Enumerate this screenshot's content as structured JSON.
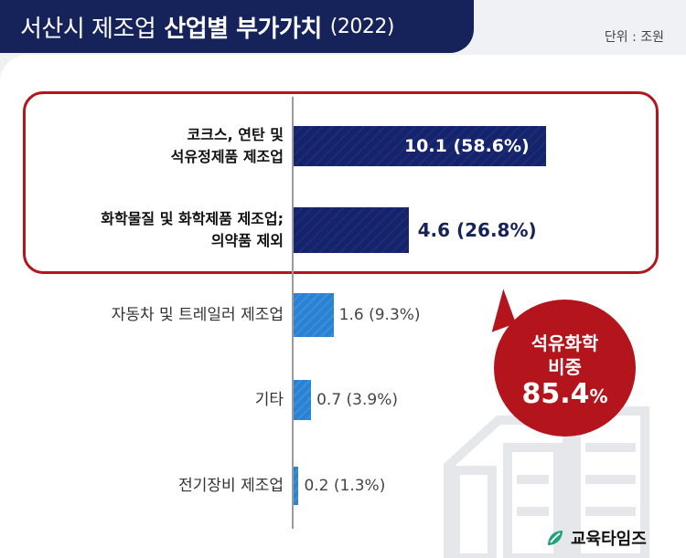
{
  "title": {
    "light": "서산시 제조업",
    "bold": "산업별 부가가치",
    "year": "(2022)"
  },
  "unit": "단위 : 조원",
  "colors": {
    "navy": "#15235a",
    "highlight_bar": "#15246a",
    "normal_bar": "#2b82d3",
    "accent_red": "#b4141b"
  },
  "chart_data": {
    "type": "bar",
    "orientation": "horizontal",
    "title": "서산시 제조업 산업별 부가가치 (2022)",
    "unit": "단위 : 조원",
    "categories": [
      "코크스, 연탄 및 석유정제품 제조업",
      "화학물질 및 화학제품 제조업; 의약품 제외",
      "자동차 및 트레일러 제조업",
      "기타",
      "전기장비 제조업"
    ],
    "category_lines": [
      [
        "코크스, 연탄 및",
        "석유정제품 제조업"
      ],
      [
        "화학물질 및 화학제품 제조업;",
        "의약품 제외"
      ],
      [
        "자동차 및 트레일러 제조업"
      ],
      [
        "기타"
      ],
      [
        "전기장비 제조업"
      ]
    ],
    "values": [
      10.1,
      4.6,
      1.6,
      0.7,
      0.2
    ],
    "shares_percent": [
      58.6,
      26.8,
      9.3,
      3.9,
      1.3
    ],
    "value_labels": [
      "10.1 (58.6%)",
      "4.6 (26.8%)",
      "1.6 (9.3%)",
      "0.7 (3.9%)",
      "0.2 (1.3%)"
    ],
    "highlighted": [
      true,
      true,
      false,
      false,
      false
    ],
    "xlim": [
      0,
      10.8
    ],
    "grid": false,
    "legend": "none"
  },
  "badge": {
    "line1": "석유화학",
    "line2": "비중",
    "value": "85.4",
    "unit": "%"
  },
  "logo": {
    "text": "교육타임즈",
    "icon": "leaf-icon"
  }
}
